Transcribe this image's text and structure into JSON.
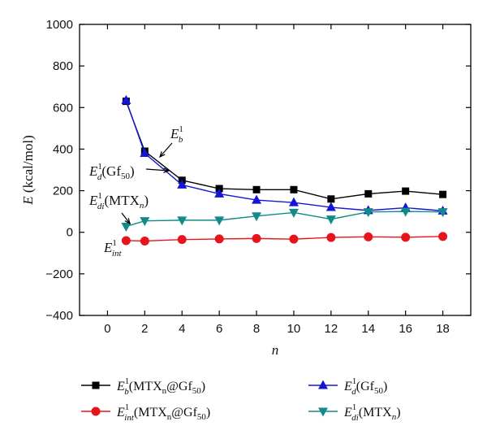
{
  "chart_data": {
    "type": "line",
    "xlabel": "n",
    "ylabel": "E (kcal/mol)",
    "xlim": [
      -1.5,
      19.5
    ],
    "ylim": [
      -400,
      1000
    ],
    "xticks": [
      0,
      2,
      4,
      6,
      8,
      10,
      12,
      14,
      16,
      18
    ],
    "yticks": [
      -400,
      -200,
      0,
      200,
      400,
      600,
      800,
      1000
    ],
    "x": [
      1,
      2,
      4,
      6,
      8,
      10,
      12,
      14,
      16,
      18
    ],
    "series": [
      {
        "key": "Eb",
        "name": "E_b^1(MTX_n@Gf_50)",
        "color": "#000000",
        "marker": "square",
        "values": [
          630,
          390,
          250,
          210,
          205,
          205,
          160,
          185,
          198,
          182
        ]
      },
      {
        "key": "Eint",
        "name": "E_int^1(MTX_n@Gf_50)",
        "color": "#e8141b",
        "marker": "circle",
        "values": [
          -40,
          -42,
          -35,
          -32,
          -30,
          -33,
          -25,
          -22,
          -24,
          -20
        ]
      },
      {
        "key": "Ed",
        "name": "E_d^1(Gf_50)",
        "color": "#1515d6",
        "marker": "triangle-up",
        "values": [
          635,
          380,
          228,
          185,
          155,
          143,
          120,
          105,
          118,
          103
        ]
      },
      {
        "key": "Edi",
        "name": "E_di^1(MTX_n)",
        "color": "#128a8a",
        "marker": "triangle-down",
        "values": [
          28,
          55,
          58,
          58,
          78,
          95,
          63,
          98,
          100,
          98
        ]
      }
    ],
    "legend": {
      "position": "bottom",
      "entries": [
        {
          "series": "Eb",
          "main": "E",
          "sub": "b",
          "sup": "1",
          "tail": [
            [
              "(MTX",
              ""
            ],
            [
              "n",
              "sub"
            ],
            [
              "@Gf",
              ""
            ],
            [
              "50",
              "sub"
            ],
            [
              ")",
              ""
            ]
          ]
        },
        {
          "series": "Ed",
          "main": "E",
          "sub": "d",
          "sup": "1",
          "tail": [
            [
              "(Gf",
              ""
            ],
            [
              "50",
              "sub"
            ],
            [
              ")",
              ""
            ]
          ]
        },
        {
          "series": "Eint",
          "main": "E",
          "sub": "int",
          "sup": "1",
          "tail": [
            [
              "(MTX",
              ""
            ],
            [
              "n",
              "sub"
            ],
            [
              "@Gf",
              ""
            ],
            [
              "50",
              "sub"
            ],
            [
              ")",
              ""
            ]
          ]
        },
        {
          "series": "Edi",
          "main": "E",
          "sub": "di",
          "sup": "1",
          "tail": [
            [
              "(MTX",
              ""
            ],
            [
              "n",
              "sub",
              "italic"
            ],
            [
              ")",
              ""
            ]
          ]
        }
      ]
    },
    "annotations": [
      {
        "id": "Eb",
        "main": "E",
        "sub": "b",
        "sup": "1",
        "tail": []
      },
      {
        "id": "Ed",
        "main": "E",
        "sub": "d",
        "sup": "1",
        "tail": [
          [
            "(Gf",
            ""
          ],
          [
            "50",
            "sub"
          ],
          [
            ")",
            ""
          ]
        ]
      },
      {
        "id": "Edi",
        "main": "E",
        "sub": "di",
        "sup": "1",
        "tail": [
          [
            "(MTX",
            ""
          ],
          [
            "n",
            "sub",
            "italic"
          ],
          [
            ")",
            ""
          ]
        ]
      },
      {
        "id": "Eint",
        "main": "E",
        "sub": "int",
        "sup": "1",
        "tail": []
      }
    ],
    "grid": false
  }
}
